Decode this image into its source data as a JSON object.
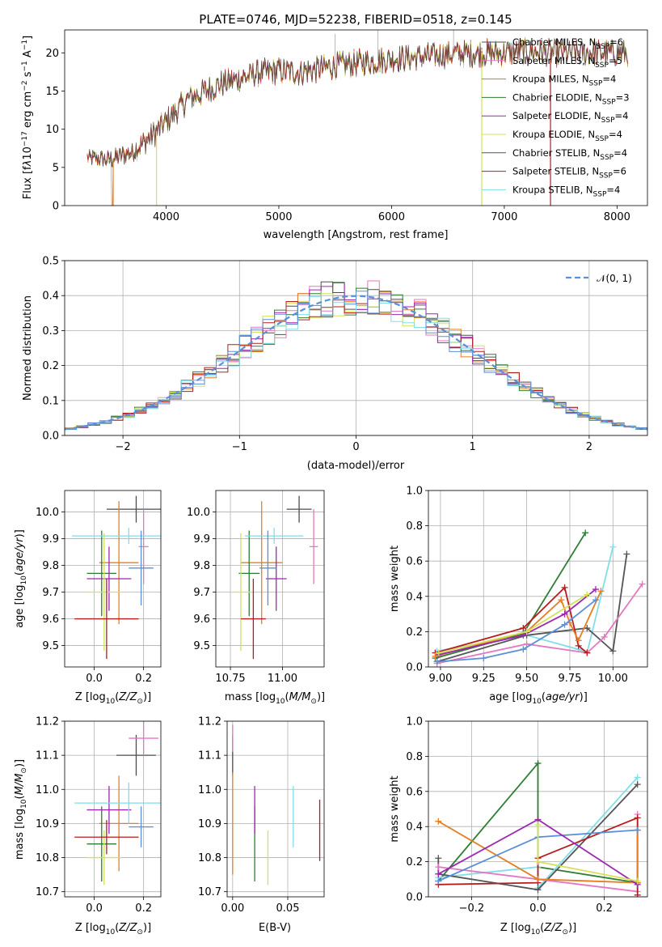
{
  "colors": {
    "chabrier_miles": "#4d4d4d",
    "salpeter_miles": "#e377c2",
    "kroupa_miles": "#b8860b",
    "chabrier_elodie": "#2e7d32",
    "salpeter_elodie": "#9c27b0",
    "kroupa_elodie": "#d4e157",
    "chabrier_stelib": "#555555",
    "salpeter_stelib": "#b71c1c",
    "kroupa_stelib": "#80deea",
    "orange": "#e67e22",
    "blue": "#5b8fd9",
    "grid": "#b0b0b0"
  },
  "chart_data": [
    {
      "type": "line",
      "title": "PLATE=0746, MJD=52238, FIBERID=0518, z=0.145",
      "xlabel": "wavelength [Angstrom, rest frame]",
      "ylabel_parts": [
        "Flux [f",
        "λ",
        "10",
        "−17",
        " erg cm",
        "−2",
        " s",
        "−1",
        " A",
        "−1",
        "]"
      ],
      "xlim": [
        3100,
        8270
      ],
      "ylim": [
        0,
        23
      ],
      "xticks": [
        4000,
        5000,
        6000,
        7000,
        8000
      ],
      "xtick_labels": [
        "4000",
        "5000",
        "6000",
        "7000",
        "8000"
      ],
      "yticks": [
        0,
        5,
        10,
        15,
        20
      ],
      "ytick_labels": [
        "0",
        "5",
        "10",
        "15",
        "20"
      ],
      "continuum": {
        "x": [
          3300,
          3500,
          3700,
          3900,
          4000,
          4200,
          4500,
          4800,
          5000,
          5200,
          5500,
          5800,
          6000,
          6200,
          6500,
          6800,
          7000,
          7200,
          7400
        ],
        "y": [
          6.3,
          6.0,
          7.0,
          9.5,
          11.0,
          14.0,
          16.0,
          17.3,
          17.6,
          17.5,
          18.3,
          18.8,
          19.2,
          19.4,
          19.8,
          20.0,
          20.0,
          20.2,
          20.0
        ]
      },
      "legend": [
        {
          "label": "Chabrier MILES, N",
          "sub": "SSP",
          "value": "=6",
          "color_key": "chabrier_miles"
        },
        {
          "label": "Salpeter MILES, N",
          "sub": "SSP",
          "value": "=5",
          "color_key": "salpeter_miles"
        },
        {
          "label": "Kroupa MILES, N",
          "sub": "SSP",
          "value": "=4",
          "color_key": "kroupa_miles"
        },
        {
          "label": "Chabrier ELODIE, N",
          "sub": "SSP",
          "value": "=3",
          "color_key": "chabrier_elodie"
        },
        {
          "label": "Salpeter ELODIE, N",
          "sub": "SSP",
          "value": "=4",
          "color_key": "salpeter_elodie"
        },
        {
          "label": "Kroupa ELODIE, N",
          "sub": "SSP",
          "value": "=4",
          "color_key": "kroupa_elodie"
        },
        {
          "label": "Chabrier STELIB, N",
          "sub": "SSP",
          "value": "=4",
          "color_key": "chabrier_stelib"
        },
        {
          "label": "Salpeter STELIB, N",
          "sub": "SSP",
          "value": "=6",
          "color_key": "salpeter_stelib"
        },
        {
          "label": "Kroupa STELIB, N",
          "sub": "SSP",
          "value": "=4",
          "color_key": "kroupa_stelib"
        }
      ],
      "legend_placement": "top-right"
    },
    {
      "type": "histogram",
      "xlabel": "(data-model)/error",
      "ylabel": "Normed distribution",
      "xlim": [
        -2.5,
        2.5
      ],
      "ylim": [
        0,
        0.5
      ],
      "xticks": [
        -2,
        -1,
        0,
        1,
        2
      ],
      "xtick_labels": [
        "−2",
        "−1",
        "0",
        "1",
        "2"
      ],
      "yticks": [
        0,
        0.1,
        0.2,
        0.3,
        0.4,
        0.5
      ],
      "ytick_labels": [
        "0.0",
        "0.1",
        "0.2",
        "0.3",
        "0.4",
        "0.5"
      ],
      "bin_width": 0.1,
      "grid": true,
      "legend": [
        {
          "label": "𝒩(0, 1)",
          "style": "dashed",
          "color_key": "blue"
        }
      ],
      "legend_placement": "top-right"
    },
    {
      "type": "errorbar",
      "xlabel": "Z [log10(Z/Z⊙)]",
      "xlabel_parts": [
        "Z [log",
        "10",
        "(",
        "Z/Z",
        "⊙",
        ")]"
      ],
      "ylabel_parts": [
        "age  [log",
        "10",
        "(",
        "age/yr",
        ")]"
      ],
      "xlim": [
        -0.12,
        0.27
      ],
      "ylim": [
        9.42,
        10.08
      ],
      "xticks": [
        0.0,
        0.2
      ],
      "xtick_labels": [
        "0.0",
        "0.2"
      ],
      "yticks": [
        9.5,
        9.6,
        9.7,
        9.8,
        9.9,
        10.0
      ],
      "ytick_labels": [
        "9.5",
        "9.6",
        "9.7",
        "9.8",
        "9.9",
        "10.0"
      ],
      "points": [
        {
          "x": 0.17,
          "y": 10.01,
          "xerr": 0.12,
          "yerr": 0.05,
          "color_key": "chabrier_miles"
        },
        {
          "x": 0.2,
          "y": 9.87,
          "xerr": 0.02,
          "yerr": 0.14,
          "color_key": "salpeter_miles"
        },
        {
          "x": 0.1,
          "y": 9.81,
          "xerr": 0.08,
          "yerr": 0.23,
          "color_key": "orange"
        },
        {
          "x": 0.03,
          "y": 9.77,
          "xerr": 0.06,
          "yerr": 0.16,
          "color_key": "chabrier_elodie"
        },
        {
          "x": 0.06,
          "y": 9.75,
          "xerr": 0.09,
          "yerr": 0.12,
          "color_key": "salpeter_elodie"
        },
        {
          "x": 0.04,
          "y": 9.7,
          "xerr": 0.08,
          "yerr": 0.22,
          "color_key": "kroupa_elodie"
        },
        {
          "x": 0.14,
          "y": 9.91,
          "xerr": 0.23,
          "yerr": 0.03,
          "color_key": "kroupa_stelib"
        },
        {
          "x": 0.05,
          "y": 9.6,
          "xerr": 0.13,
          "yerr": 0.15,
          "color_key": "salpeter_stelib"
        },
        {
          "x": 0.19,
          "y": 9.79,
          "xerr": 0.05,
          "yerr": 0.14,
          "color_key": "blue"
        }
      ]
    },
    {
      "type": "errorbar",
      "xlabel_parts": [
        "mass [log",
        "10",
        "(",
        "M/M",
        "⊙",
        ")]"
      ],
      "xlim": [
        10.68,
        11.2
      ],
      "ylim": [
        9.42,
        10.08
      ],
      "xticks": [
        10.75,
        11.0
      ],
      "xtick_labels": [
        "10.75",
        "11.00"
      ],
      "yticks": [
        9.5,
        9.6,
        9.7,
        9.8,
        9.9,
        10.0
      ],
      "ytick_labels": [
        "9.5",
        "9.6",
        "9.7",
        "9.8",
        "9.9",
        "10.0"
      ],
      "points": [
        {
          "x": 11.08,
          "y": 10.01,
          "xerr": 0.06,
          "yerr": 0.05,
          "color_key": "chabrier_miles"
        },
        {
          "x": 11.15,
          "y": 9.87,
          "xerr": 0.02,
          "yerr": 0.14,
          "color_key": "salpeter_miles"
        },
        {
          "x": 10.9,
          "y": 9.81,
          "xerr": 0.1,
          "yerr": 0.23,
          "color_key": "orange"
        },
        {
          "x": 10.84,
          "y": 9.77,
          "xerr": 0.05,
          "yerr": 0.16,
          "color_key": "chabrier_elodie"
        },
        {
          "x": 10.97,
          "y": 9.75,
          "xerr": 0.05,
          "yerr": 0.12,
          "color_key": "salpeter_elodie"
        },
        {
          "x": 10.8,
          "y": 9.7,
          "xerr": 0.05,
          "yerr": 0.22,
          "color_key": "kroupa_elodie"
        },
        {
          "x": 10.96,
          "y": 9.91,
          "xerr": 0.14,
          "yerr": 0.03,
          "color_key": "kroupa_stelib"
        },
        {
          "x": 10.86,
          "y": 9.6,
          "xerr": 0.06,
          "yerr": 0.15,
          "color_key": "salpeter_stelib"
        },
        {
          "x": 10.93,
          "y": 9.79,
          "xerr": 0.04,
          "yerr": 0.14,
          "color_key": "blue"
        }
      ]
    },
    {
      "type": "line",
      "xlabel_parts": [
        "age  [log",
        "10",
        "(",
        "age/yr",
        ")]"
      ],
      "ylabel": "mass weight",
      "xlim": [
        8.93,
        10.2
      ],
      "ylim": [
        0,
        1
      ],
      "xticks": [
        9.0,
        9.25,
        9.5,
        9.75,
        10.0
      ],
      "xtick_labels": [
        "9.00",
        "9.25",
        "9.50",
        "9.75",
        "10.00"
      ],
      "yticks": [
        0,
        0.2,
        0.4,
        0.6,
        0.8,
        1.0
      ],
      "ytick_labels": [
        "0.0",
        "0.2",
        "0.4",
        "0.6",
        "0.8",
        "1.0"
      ],
      "grid": true,
      "series": [
        {
          "color_key": "chabrier_elodie",
          "x": [
            8.97,
            9.48,
            9.84
          ],
          "y": [
            0.05,
            0.19,
            0.76
          ]
        },
        {
          "color_key": "kroupa_stelib",
          "x": [
            8.98,
            9.5,
            9.8,
            9.85,
            10.0
          ],
          "y": [
            0.09,
            0.18,
            0.1,
            0.08,
            0.68
          ]
        },
        {
          "color_key": "chabrier_stelib",
          "x": [
            8.98,
            9.5,
            9.85,
            10.0,
            10.08
          ],
          "y": [
            0.03,
            0.18,
            0.22,
            0.09,
            0.64
          ]
        },
        {
          "color_key": "salpeter_miles",
          "x": [
            8.98,
            9.5,
            9.85,
            9.95,
            10.17
          ],
          "y": [
            0.02,
            0.13,
            0.08,
            0.17,
            0.47
          ]
        },
        {
          "color_key": "salpeter_stelib",
          "x": [
            8.97,
            9.48,
            9.72,
            9.8,
            9.85
          ],
          "y": [
            0.08,
            0.22,
            0.45,
            0.12,
            0.08
          ]
        },
        {
          "color_key": "orange",
          "x": [
            8.97,
            9.5,
            9.7,
            9.75,
            9.8,
            9.93
          ],
          "y": [
            0.06,
            0.2,
            0.38,
            0.25,
            0.15,
            0.43
          ]
        },
        {
          "color_key": "blue",
          "x": [
            8.98,
            9.25,
            9.48,
            9.72,
            9.9
          ],
          "y": [
            0.03,
            0.05,
            0.1,
            0.24,
            0.38
          ]
        },
        {
          "color_key": "salpeter_elodie",
          "x": [
            8.99,
            9.48,
            9.72,
            9.9
          ],
          "y": [
            0.07,
            0.18,
            0.3,
            0.44
          ]
        },
        {
          "color_key": "kroupa_elodie",
          "x": [
            8.99,
            9.5,
            9.85
          ],
          "y": [
            0.08,
            0.2,
            0.41
          ]
        }
      ]
    },
    {
      "type": "errorbar",
      "xlabel_parts": [
        "Z [log",
        "10",
        "(",
        "Z/Z",
        "⊙",
        ")]"
      ],
      "ylabel_parts": [
        "mass [log",
        "10",
        "(",
        "M/M",
        "⊙",
        ")]"
      ],
      "xlim": [
        -0.12,
        0.27
      ],
      "ylim": [
        10.685,
        11.2
      ],
      "xticks": [
        0.0,
        0.2
      ],
      "xtick_labels": [
        "0.0",
        "0.2"
      ],
      "yticks": [
        10.7,
        10.8,
        10.9,
        11.0,
        11.1,
        11.2
      ],
      "ytick_labels": [
        "10.7",
        "10.8",
        "10.9",
        "11.0",
        "11.1",
        "11.2"
      ],
      "points": [
        {
          "x": 0.17,
          "y": 11.1,
          "xerr": 0.08,
          "yerr": 0.06,
          "color_key": "chabrier_miles"
        },
        {
          "x": 0.2,
          "y": 11.15,
          "xerr": 0.06,
          "yerr": 0.05,
          "color_key": "salpeter_miles"
        },
        {
          "x": 0.1,
          "y": 10.9,
          "xerr": 0.08,
          "yerr": 0.14,
          "color_key": "orange"
        },
        {
          "x": 0.03,
          "y": 10.84,
          "xerr": 0.06,
          "yerr": 0.11,
          "color_key": "chabrier_elodie"
        },
        {
          "x": 0.06,
          "y": 10.94,
          "xerr": 0.09,
          "yerr": 0.07,
          "color_key": "salpeter_elodie"
        },
        {
          "x": 0.04,
          "y": 10.8,
          "xerr": 0.07,
          "yerr": 0.08,
          "color_key": "kroupa_elodie"
        },
        {
          "x": 0.14,
          "y": 10.96,
          "xerr": 0.22,
          "yerr": 0.06,
          "color_key": "kroupa_stelib"
        },
        {
          "x": 0.05,
          "y": 10.86,
          "xerr": 0.13,
          "yerr": 0.05,
          "color_key": "salpeter_stelib"
        },
        {
          "x": 0.19,
          "y": 10.89,
          "xerr": 0.05,
          "yerr": 0.06,
          "color_key": "blue"
        }
      ]
    },
    {
      "type": "errorbar",
      "xlabel": "E(B-V)",
      "xlim": [
        -0.005,
        0.083
      ],
      "ylim": [
        10.685,
        11.2
      ],
      "xticks": [
        0.0,
        0.05
      ],
      "xtick_labels": [
        "0.00",
        "0.05"
      ],
      "yticks": [
        10.7,
        10.8,
        10.9,
        11.0,
        11.1,
        11.2
      ],
      "ytick_labels": [
        "10.7",
        "10.8",
        "10.9",
        "11.0",
        "11.1",
        "11.2"
      ],
      "points": [
        {
          "x": 0.0,
          "y": 11.1,
          "xerr": 0,
          "yerr": 0.06,
          "color_key": "chabrier_miles"
        },
        {
          "x": 0.0,
          "y": 11.15,
          "xerr": 0,
          "yerr": 0.04,
          "color_key": "salpeter_miles"
        },
        {
          "x": 0.0,
          "y": 10.9,
          "xerr": 0,
          "yerr": 0.15,
          "color_key": "orange"
        },
        {
          "x": 0.02,
          "y": 10.84,
          "xerr": 0,
          "yerr": 0.11,
          "color_key": "chabrier_elodie"
        },
        {
          "x": 0.02,
          "y": 10.94,
          "xerr": 0,
          "yerr": 0.07,
          "color_key": "salpeter_elodie"
        },
        {
          "x": 0.032,
          "y": 10.8,
          "xerr": 0,
          "yerr": 0.08,
          "color_key": "kroupa_elodie"
        },
        {
          "x": 0.055,
          "y": 10.92,
          "xerr": 0,
          "yerr": 0.09,
          "color_key": "kroupa_stelib"
        },
        {
          "x": 0.079,
          "y": 10.88,
          "xerr": 0,
          "yerr": 0.09,
          "color_key": "salpeter_stelib"
        }
      ]
    },
    {
      "type": "line",
      "xlabel_parts": [
        "Z [log",
        "10",
        "(",
        "Z/Z",
        "⊙",
        ")]"
      ],
      "ylabel": "mass weight",
      "xlim": [
        -0.33,
        0.33
      ],
      "ylim": [
        0,
        1
      ],
      "xticks": [
        -0.2,
        0.0,
        0.2
      ],
      "xtick_labels": [
        "−0.2",
        "0.0",
        "0.2"
      ],
      "yticks": [
        0,
        0.2,
        0.4,
        0.6,
        0.8,
        1.0
      ],
      "ytick_labels": [
        "0.0",
        "0.2",
        "0.4",
        "0.6",
        "0.8",
        "1.0"
      ],
      "grid": true,
      "series": [
        {
          "color_key": "chabrier_elodie",
          "x": [
            -0.3,
            0.0,
            0.0,
            0.3
          ],
          "y": [
            0.09,
            0.76,
            0.17,
            0.08
          ]
        },
        {
          "color_key": "kroupa_stelib",
          "x": [
            -0.3,
            0.0,
            0.0,
            0.3
          ],
          "y": [
            0.11,
            0.17,
            0.05,
            0.68
          ]
        },
        {
          "color_key": "chabrier_stelib",
          "x": [
            -0.3,
            -0.3,
            0.0,
            0.3
          ],
          "y": [
            0.22,
            0.13,
            0.04,
            0.64
          ]
        },
        {
          "color_key": "salpeter_miles",
          "x": [
            -0.3,
            0.3,
            0.3
          ],
          "y": [
            0.17,
            0.03,
            0.47
          ]
        },
        {
          "color_key": "salpeter_stelib",
          "x": [
            -0.3,
            0.0,
            0.0,
            0.3,
            0.3
          ],
          "y": [
            0.07,
            0.08,
            0.22,
            0.45,
            0.01
          ]
        },
        {
          "color_key": "orange",
          "x": [
            -0.3,
            0.0,
            0.3,
            0.3
          ],
          "y": [
            0.43,
            0.1,
            0.08,
            0.38
          ]
        },
        {
          "color_key": "blue",
          "x": [
            -0.3,
            0.0,
            0.3
          ],
          "y": [
            0.09,
            0.34,
            0.38
          ]
        },
        {
          "color_key": "salpeter_elodie",
          "x": [
            -0.3,
            0.0,
            0.3
          ],
          "y": [
            0.13,
            0.44,
            0.07
          ]
        },
        {
          "color_key": "kroupa_elodie",
          "x": [
            0.0,
            0.0,
            0.3
          ],
          "y": [
            0.41,
            0.2,
            0.09
          ]
        }
      ]
    }
  ]
}
